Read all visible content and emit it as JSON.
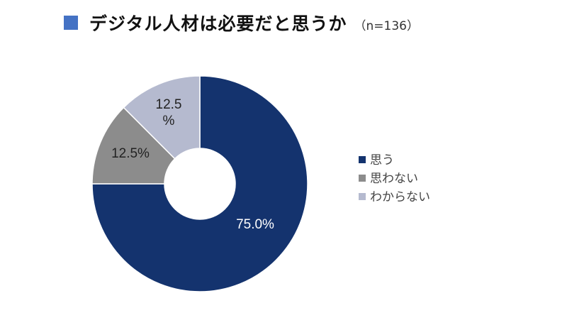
{
  "chart_data": {
    "type": "pie",
    "variant": "donut",
    "title": "デジタル人材は必要だと思うか",
    "subtitle": "（n=136）",
    "categories": [
      "思う",
      "思わない",
      "わからない"
    ],
    "values": [
      75.0,
      12.5,
      12.5
    ],
    "data_labels": [
      "75.0%",
      "12.5%",
      "12.5%"
    ],
    "colors": [
      "#14336E",
      "#8C8C8C",
      "#B5BACF"
    ],
    "title_marker_color": "#4472C4",
    "legend_position": "right"
  }
}
